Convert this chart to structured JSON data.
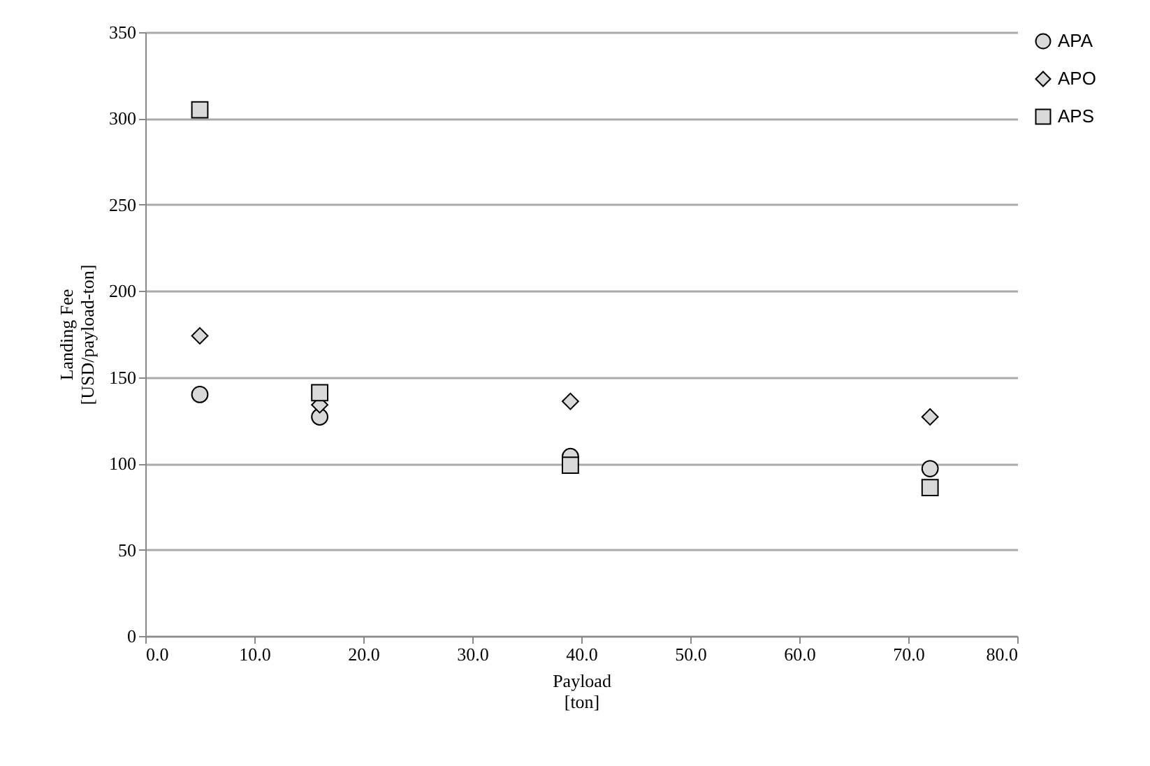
{
  "chart_data": {
    "type": "scatter",
    "xlabel": "Payload\n[ton]",
    "ylabel": "Landing Fee\n[USD/payload-ton]",
    "x": [
      5,
      16,
      39,
      72
    ],
    "series": [
      {
        "name": "APA",
        "color": "#d9d9d9",
        "marker": "circle",
        "values": [
          140,
          127,
          104,
          97
        ]
      },
      {
        "name": "APO",
        "color": "#d9d9d9",
        "marker": "diamond",
        "values": [
          174,
          134,
          136,
          127
        ]
      },
      {
        "name": "APS",
        "color": "#d9d9d9",
        "marker": "square",
        "values": [
          305,
          141,
          99,
          86
        ]
      }
    ],
    "xlim": [
      0,
      80
    ],
    "xticks": [
      {
        "value": 0,
        "label": "0.0"
      },
      {
        "value": 10,
        "label": "10.0"
      },
      {
        "value": 20,
        "label": "20.0"
      },
      {
        "value": 30,
        "label": "30.0"
      },
      {
        "value": 40,
        "label": "40.0"
      },
      {
        "value": 50,
        "label": "50.0"
      },
      {
        "value": 60,
        "label": "60.0"
      },
      {
        "value": 70,
        "label": "70.0"
      },
      {
        "value": 80,
        "label": "80.0"
      }
    ],
    "ylim": [
      0,
      350
    ],
    "yticks": [
      0,
      50,
      100,
      150,
      200,
      250,
      300,
      350
    ],
    "grid": "y",
    "legend": "right"
  }
}
